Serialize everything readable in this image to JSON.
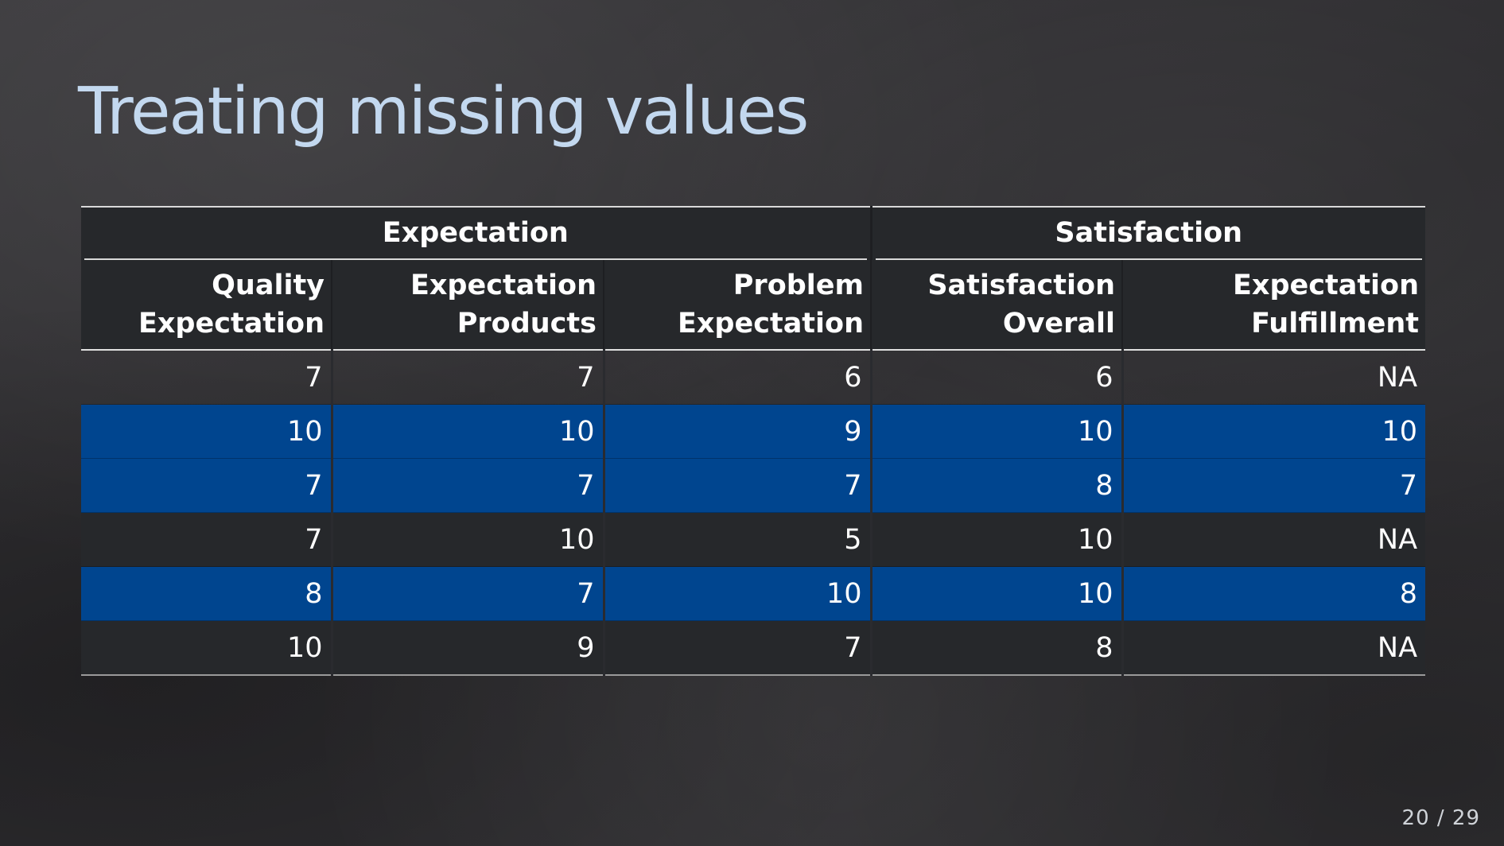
{
  "slide": {
    "title": "Treating missing values",
    "page_number": "20 / 29"
  },
  "table": {
    "group_headers": [
      "Expectation",
      "Satisfaction"
    ],
    "columns": [
      [
        "Quality",
        "Expectation"
      ],
      [
        "Expectation",
        "Products"
      ],
      [
        "Problem",
        "Expectation"
      ],
      [
        "Satisfaction",
        "Overall"
      ],
      [
        "Expectation",
        "Fulfillment"
      ]
    ],
    "rows": [
      {
        "style": "plain",
        "cells": [
          "7",
          "7",
          "6",
          "6",
          "NA"
        ]
      },
      {
        "style": "blue",
        "cells": [
          "10",
          "10",
          "9",
          "10",
          "10"
        ]
      },
      {
        "style": "blue",
        "cells": [
          "7",
          "7",
          "7",
          "8",
          "7"
        ]
      },
      {
        "style": "dark",
        "cells": [
          "7",
          "10",
          "5",
          "10",
          "NA"
        ]
      },
      {
        "style": "blue",
        "cells": [
          "8",
          "7",
          "10",
          "10",
          "8"
        ]
      },
      {
        "style": "dark",
        "cells": [
          "10",
          "9",
          "7",
          "8",
          "NA"
        ]
      }
    ]
  },
  "colors": {
    "title": "#c3d8ef",
    "highlight_row": "#00458f",
    "dark_row": "#26282b",
    "background": "#302f32"
  }
}
